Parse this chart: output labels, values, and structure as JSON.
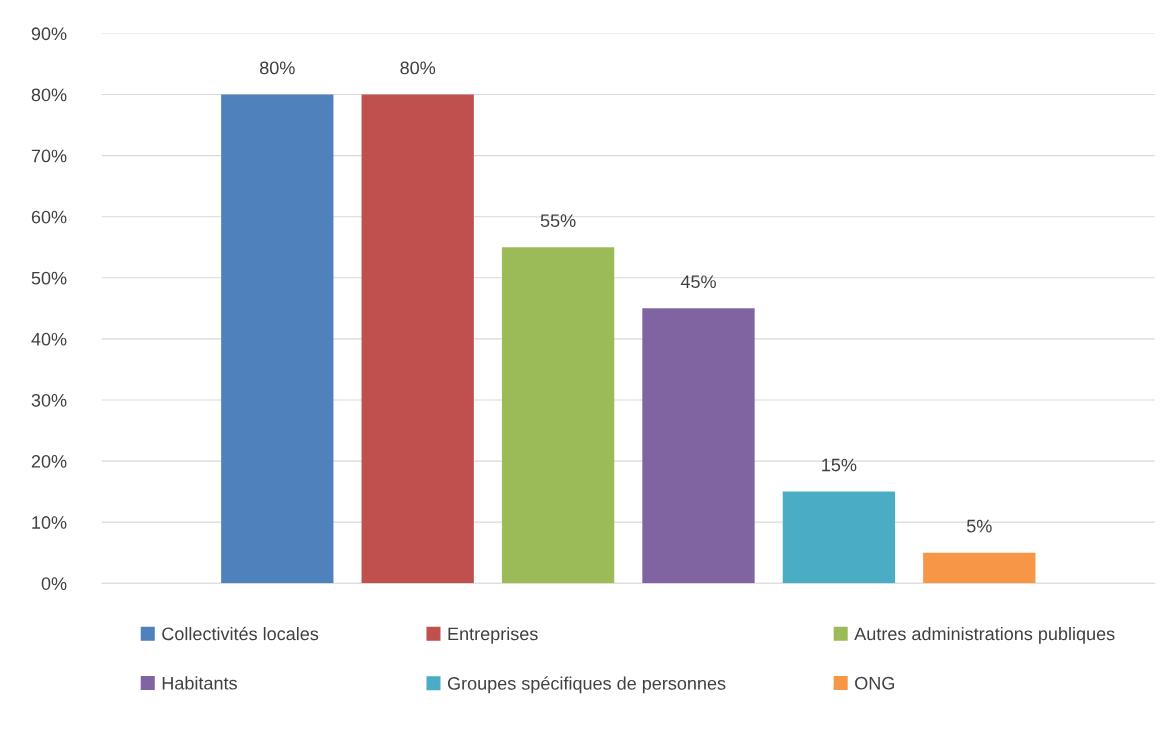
{
  "chart_data": {
    "type": "bar",
    "categories": [
      null
    ],
    "series": [
      {
        "name": "Collectivités locales",
        "color": "#4f81bd",
        "values": [
          80
        ],
        "value_labels": [
          "80%"
        ]
      },
      {
        "name": "Entreprises",
        "color": "#c0504d",
        "values": [
          80
        ],
        "value_labels": [
          "80%"
        ]
      },
      {
        "name": "Autres administrations publiques",
        "color": "#9bbb59",
        "values": [
          55
        ],
        "value_labels": [
          "55%"
        ]
      },
      {
        "name": "Habitants",
        "color": "#8064a2",
        "values": [
          45
        ],
        "value_labels": [
          "45%"
        ]
      },
      {
        "name": "Groupes spécifiques de personnes",
        "color": "#4bacc6",
        "values": [
          15
        ],
        "value_labels": [
          "15%"
        ]
      },
      {
        "name": "ONG",
        "color": "#f79646",
        "values": [
          5
        ],
        "value_labels": [
          "5%"
        ]
      }
    ],
    "ylim": [
      0,
      90
    ],
    "yticks": [
      {
        "value": 0,
        "label": "0%"
      },
      {
        "value": 10,
        "label": "10%"
      },
      {
        "value": 20,
        "label": "20%"
      },
      {
        "value": 30,
        "label": "30%"
      },
      {
        "value": 40,
        "label": "40%"
      },
      {
        "value": 50,
        "label": "50%"
      },
      {
        "value": 60,
        "label": "60%"
      },
      {
        "value": 70,
        "label": "70%"
      },
      {
        "value": 80,
        "label": "80%"
      },
      {
        "value": 90,
        "label": "90%"
      }
    ],
    "grid": "y",
    "legend": "bottom"
  }
}
